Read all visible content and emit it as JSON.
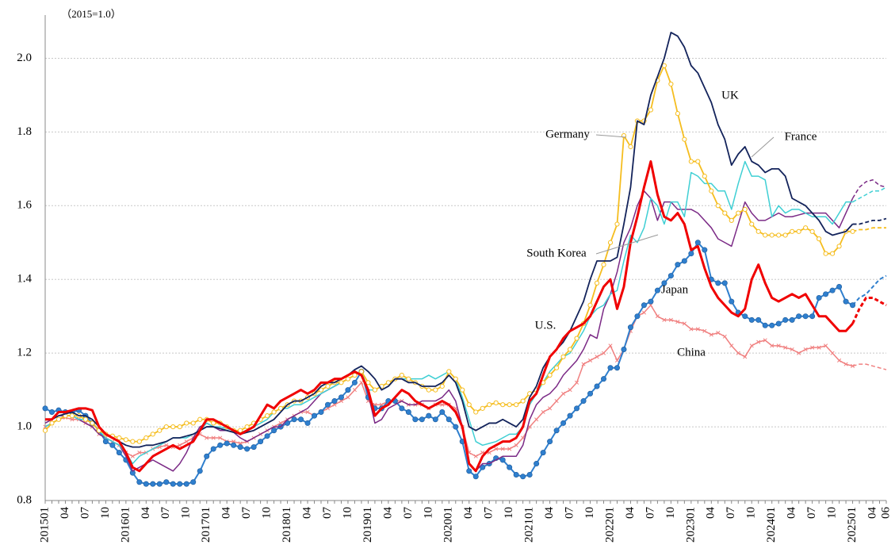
{
  "chart_data": {
    "type": "line",
    "y_unit_label": "（2015=1.0）",
    "ylim": [
      0.8,
      2.1
    ],
    "yticks": [
      0.8,
      {
        "value": 1,
        "label": "1.0"
      },
      1.2,
      1.4,
      1.6,
      1.8,
      {
        "value": 2,
        "label": "2.0"
      }
    ],
    "grid": true,
    "dashed_from_index": 120,
    "categories": [
      "201501",
      null,
      null,
      "04",
      null,
      null,
      "07",
      null,
      null,
      "10",
      null,
      null,
      "201601",
      null,
      null,
      "04",
      null,
      null,
      "07",
      null,
      null,
      "10",
      null,
      null,
      "201701",
      null,
      null,
      "04",
      null,
      null,
      "07",
      null,
      null,
      "10",
      null,
      null,
      "201801",
      null,
      null,
      "04",
      null,
      null,
      "07",
      null,
      null,
      "10",
      null,
      null,
      "201901",
      null,
      null,
      "04",
      null,
      null,
      "07",
      null,
      null,
      "10",
      null,
      null,
      "202001",
      null,
      null,
      "04",
      null,
      null,
      "07",
      null,
      null,
      "10",
      null,
      null,
      "202101",
      null,
      null,
      "04",
      null,
      null,
      "07",
      null,
      null,
      "10",
      null,
      null,
      "202201",
      null,
      null,
      "04",
      null,
      null,
      "07",
      null,
      null,
      "10",
      null,
      null,
      "202301",
      null,
      null,
      "04",
      null,
      null,
      "07",
      null,
      null,
      "10",
      null,
      null,
      "202401",
      null,
      null,
      "04",
      null,
      null,
      "07",
      null,
      null,
      "10",
      null,
      null,
      "202501",
      null,
      null,
      "04",
      null,
      "06"
    ],
    "series": [
      {
        "name": "China",
        "color": "#f08080",
        "width": 1.5,
        "marker": "x",
        "values": [
          1.0,
          1.01,
          1.02,
          1.025,
          1.02,
          1.02,
          1.01,
          1.0,
          0.98,
          0.97,
          0.96,
          0.95,
          0.93,
          0.92,
          0.93,
          0.93,
          0.94,
          0.945,
          0.95,
          0.945,
          0.95,
          0.96,
          0.97,
          0.98,
          0.97,
          0.97,
          0.97,
          0.96,
          0.96,
          0.955,
          0.96,
          0.97,
          0.98,
          0.99,
          1.0,
          1.01,
          1.02,
          1.03,
          1.04,
          1.04,
          1.03,
          1.04,
          1.05,
          1.06,
          1.07,
          1.08,
          1.1,
          1.12,
          1.07,
          1.06,
          1.06,
          1.07,
          1.07,
          1.07,
          1.06,
          1.06,
          1.06,
          1.05,
          1.06,
          1.06,
          1.06,
          1.05,
          1.0,
          0.93,
          0.92,
          0.93,
          0.93,
          0.94,
          0.94,
          0.94,
          0.95,
          0.97,
          1.0,
          1.02,
          1.04,
          1.05,
          1.07,
          1.09,
          1.1,
          1.12,
          1.17,
          1.18,
          1.19,
          1.2,
          1.22,
          1.18,
          1.21,
          1.26,
          1.3,
          1.31,
          1.33,
          1.3,
          1.29,
          1.29,
          1.285,
          1.28,
          1.265,
          1.265,
          1.26,
          1.25,
          1.255,
          1.245,
          1.22,
          1.2,
          1.19,
          1.22,
          1.23,
          1.235,
          1.22,
          1.22,
          1.215,
          1.21,
          1.2,
          1.21,
          1.215,
          1.215,
          1.22,
          1.2,
          1.18,
          1.17,
          1.165,
          1.17,
          1.17,
          1.165,
          1.16,
          1.155
        ]
      },
      {
        "name": "Japan",
        "color": "#2f7fce",
        "width": 2,
        "marker": "filled-circle",
        "values": [
          1.05,
          1.04,
          1.045,
          1.04,
          1.04,
          1.045,
          1.03,
          1.01,
          0.99,
          0.96,
          0.95,
          0.93,
          0.91,
          0.875,
          0.85,
          0.845,
          0.845,
          0.845,
          0.85,
          0.845,
          0.845,
          0.845,
          0.85,
          0.88,
          0.92,
          0.94,
          0.95,
          0.955,
          0.95,
          0.945,
          0.94,
          0.945,
          0.96,
          0.975,
          0.99,
          1.0,
          1.01,
          1.02,
          1.02,
          1.01,
          1.03,
          1.04,
          1.06,
          1.07,
          1.08,
          1.1,
          1.12,
          1.15,
          1.08,
          1.05,
          1.05,
          1.07,
          1.07,
          1.05,
          1.04,
          1.02,
          1.02,
          1.03,
          1.02,
          1.04,
          1.02,
          1.0,
          0.96,
          0.88,
          0.865,
          0.89,
          0.9,
          0.915,
          0.91,
          0.89,
          0.87,
          0.865,
          0.87,
          0.9,
          0.93,
          0.96,
          0.99,
          1.01,
          1.03,
          1.05,
          1.07,
          1.09,
          1.11,
          1.13,
          1.16,
          1.16,
          1.21,
          1.27,
          1.3,
          1.33,
          1.34,
          1.37,
          1.39,
          1.41,
          1.44,
          1.45,
          1.47,
          1.5,
          1.48,
          1.4,
          1.39,
          1.39,
          1.34,
          1.31,
          1.3,
          1.29,
          1.29,
          1.275,
          1.275,
          1.28,
          1.29,
          1.29,
          1.3,
          1.3,
          1.3,
          1.35,
          1.36,
          1.37,
          1.38,
          1.34,
          1.33,
          1.35,
          1.36,
          1.38,
          1.4,
          1.41
        ]
      },
      {
        "name": "South Korea",
        "color": "#7b2a86",
        "width": 1.5,
        "marker": null,
        "values": [
          1.01,
          1.02,
          1.03,
          1.03,
          1.03,
          1.02,
          1.01,
          1.0,
          0.98,
          0.97,
          0.96,
          0.95,
          0.92,
          0.88,
          0.89,
          0.9,
          0.91,
          0.9,
          0.89,
          0.88,
          0.9,
          0.93,
          0.97,
          1.0,
          1.01,
          1.0,
          0.99,
          0.99,
          0.985,
          0.97,
          0.96,
          0.97,
          0.98,
          0.99,
          1.0,
          1.0,
          1.02,
          1.03,
          1.04,
          1.05,
          1.07,
          1.09,
          1.1,
          1.11,
          1.12,
          1.13,
          1.14,
          1.15,
          1.09,
          1.01,
          1.02,
          1.05,
          1.06,
          1.07,
          1.06,
          1.06,
          1.07,
          1.07,
          1.07,
          1.08,
          1.1,
          1.07,
          1.0,
          0.9,
          0.88,
          0.9,
          0.9,
          0.91,
          0.92,
          0.92,
          0.92,
          0.95,
          1.02,
          1.06,
          1.08,
          1.09,
          1.11,
          1.14,
          1.16,
          1.18,
          1.21,
          1.25,
          1.24,
          1.32,
          1.36,
          1.42,
          1.5,
          1.54,
          1.6,
          1.64,
          1.62,
          1.56,
          1.61,
          1.61,
          1.59,
          1.59,
          1.59,
          1.58,
          1.56,
          1.54,
          1.51,
          1.5,
          1.49,
          1.55,
          1.61,
          1.58,
          1.56,
          1.56,
          1.57,
          1.58,
          1.57,
          1.57,
          1.575,
          1.58,
          1.58,
          1.58,
          1.58,
          1.56,
          1.54,
          1.58,
          1.62,
          1.65,
          1.665,
          1.67,
          1.655,
          1.65
        ]
      },
      {
        "name": "France",
        "color": "#3fcfd4",
        "width": 1.5,
        "marker": null,
        "values": [
          1.0,
          1.01,
          1.02,
          1.03,
          1.03,
          1.02,
          1.02,
          1.01,
          0.99,
          0.97,
          0.96,
          0.95,
          0.93,
          0.9,
          0.92,
          0.93,
          0.94,
          0.95,
          0.96,
          0.97,
          0.97,
          0.97,
          0.98,
          0.99,
          1.01,
          1.0,
          1.0,
          0.995,
          0.99,
          0.985,
          0.99,
          1.0,
          1.01,
          1.02,
          1.04,
          1.05,
          1.05,
          1.06,
          1.06,
          1.07,
          1.08,
          1.09,
          1.1,
          1.11,
          1.12,
          1.13,
          1.14,
          1.15,
          1.1,
          1.1,
          1.11,
          1.12,
          1.13,
          1.13,
          1.13,
          1.13,
          1.13,
          1.14,
          1.13,
          1.14,
          1.15,
          1.13,
          1.08,
          1.02,
          0.96,
          0.95,
          0.955,
          0.96,
          0.97,
          0.98,
          0.98,
          1.0,
          1.06,
          1.09,
          1.12,
          1.15,
          1.17,
          1.19,
          1.2,
          1.23,
          1.26,
          1.3,
          1.32,
          1.33,
          1.36,
          1.37,
          1.45,
          1.52,
          1.5,
          1.54,
          1.62,
          1.6,
          1.55,
          1.61,
          1.61,
          1.57,
          1.69,
          1.68,
          1.66,
          1.66,
          1.64,
          1.64,
          1.59,
          1.66,
          1.72,
          1.68,
          1.68,
          1.67,
          1.57,
          1.6,
          1.58,
          1.59,
          1.59,
          1.58,
          1.57,
          1.57,
          1.57,
          1.55,
          1.58,
          1.61,
          1.61,
          1.62,
          1.63,
          1.64,
          1.64,
          1.65
        ]
      },
      {
        "name": "Germany",
        "color": "#f5bd1f",
        "width": 1.8,
        "marker": "open-circle",
        "values": [
          0.99,
          1.01,
          1.02,
          1.03,
          1.03,
          1.03,
          1.02,
          1.01,
          0.99,
          0.98,
          0.975,
          0.97,
          0.965,
          0.96,
          0.96,
          0.97,
          0.98,
          0.99,
          1.0,
          1.0,
          1.0,
          1.01,
          1.01,
          1.02,
          1.02,
          1.01,
          1.01,
          1.0,
          0.99,
          0.99,
          1.0,
          1.01,
          1.02,
          1.03,
          1.04,
          1.05,
          1.06,
          1.07,
          1.07,
          1.08,
          1.09,
          1.1,
          1.11,
          1.12,
          1.12,
          1.13,
          1.14,
          1.15,
          1.12,
          1.1,
          1.11,
          1.12,
          1.13,
          1.14,
          1.13,
          1.12,
          1.11,
          1.1,
          1.1,
          1.11,
          1.15,
          1.13,
          1.1,
          1.06,
          1.04,
          1.05,
          1.06,
          1.065,
          1.06,
          1.06,
          1.06,
          1.07,
          1.09,
          1.1,
          1.12,
          1.14,
          1.16,
          1.19,
          1.21,
          1.24,
          1.28,
          1.33,
          1.39,
          1.44,
          1.5,
          1.55,
          1.79,
          1.76,
          1.83,
          1.83,
          1.86,
          1.94,
          1.98,
          1.93,
          1.85,
          1.78,
          1.72,
          1.72,
          1.68,
          1.64,
          1.6,
          1.58,
          1.56,
          1.58,
          1.59,
          1.55,
          1.53,
          1.52,
          1.52,
          1.52,
          1.52,
          1.53,
          1.53,
          1.54,
          1.53,
          1.51,
          1.47,
          1.47,
          1.49,
          1.53,
          1.53,
          1.535,
          1.535,
          1.54,
          1.54,
          1.54
        ]
      },
      {
        "name": "UK",
        "color": "#13235b",
        "width": 1.8,
        "marker": null,
        "values": [
          1.02,
          1.02,
          1.03,
          1.035,
          1.04,
          1.03,
          1.03,
          1.02,
          1.0,
          0.98,
          0.97,
          0.96,
          0.95,
          0.945,
          0.945,
          0.95,
          0.95,
          0.955,
          0.96,
          0.97,
          0.97,
          0.975,
          0.98,
          0.99,
          1.0,
          1.0,
          0.995,
          0.99,
          0.985,
          0.98,
          0.985,
          0.99,
          1.0,
          1.01,
          1.02,
          1.04,
          1.06,
          1.07,
          1.07,
          1.08,
          1.09,
          1.11,
          1.12,
          1.12,
          1.13,
          1.14,
          1.155,
          1.165,
          1.15,
          1.13,
          1.1,
          1.11,
          1.13,
          1.13,
          1.12,
          1.12,
          1.11,
          1.11,
          1.11,
          1.12,
          1.14,
          1.12,
          1.07,
          1.0,
          0.99,
          1.0,
          1.01,
          1.01,
          1.02,
          1.01,
          1.0,
          1.02,
          1.08,
          1.11,
          1.16,
          1.19,
          1.21,
          1.23,
          1.26,
          1.3,
          1.34,
          1.4,
          1.45,
          1.45,
          1.45,
          1.46,
          1.55,
          1.65,
          1.83,
          1.82,
          1.9,
          1.95,
          2.0,
          2.07,
          2.06,
          2.03,
          1.98,
          1.96,
          1.92,
          1.88,
          1.82,
          1.78,
          1.71,
          1.74,
          1.76,
          1.72,
          1.71,
          1.69,
          1.7,
          1.7,
          1.68,
          1.62,
          1.61,
          1.6,
          1.58,
          1.56,
          1.53,
          1.52,
          1.525,
          1.53,
          1.55,
          1.55,
          1.555,
          1.56,
          1.56,
          1.565
        ]
      },
      {
        "name": "U.S.",
        "color": "#f00000",
        "width": 3,
        "marker": null,
        "values": [
          1.02,
          1.02,
          1.04,
          1.04,
          1.045,
          1.05,
          1.05,
          1.045,
          1.0,
          0.98,
          0.97,
          0.96,
          0.93,
          0.89,
          0.88,
          0.9,
          0.92,
          0.93,
          0.94,
          0.95,
          0.94,
          0.95,
          0.96,
          0.99,
          1.02,
          1.02,
          1.01,
          1.0,
          0.99,
          0.98,
          0.99,
          1.0,
          1.03,
          1.06,
          1.05,
          1.07,
          1.08,
          1.09,
          1.1,
          1.09,
          1.1,
          1.12,
          1.12,
          1.13,
          1.13,
          1.14,
          1.15,
          1.14,
          1.1,
          1.03,
          1.05,
          1.06,
          1.08,
          1.1,
          1.09,
          1.07,
          1.06,
          1.05,
          1.06,
          1.07,
          1.06,
          1.04,
          1.0,
          0.9,
          0.88,
          0.92,
          0.94,
          0.95,
          0.96,
          0.96,
          0.97,
          1.0,
          1.07,
          1.09,
          1.14,
          1.19,
          1.21,
          1.24,
          1.26,
          1.27,
          1.28,
          1.3,
          1.34,
          1.38,
          1.4,
          1.32,
          1.38,
          1.5,
          1.57,
          1.65,
          1.72,
          1.63,
          1.57,
          1.56,
          1.58,
          1.55,
          1.48,
          1.49,
          1.43,
          1.38,
          1.35,
          1.33,
          1.31,
          1.3,
          1.32,
          1.4,
          1.44,
          1.39,
          1.35,
          1.34,
          1.35,
          1.36,
          1.35,
          1.36,
          1.33,
          1.3,
          1.3,
          1.28,
          1.26,
          1.26,
          1.28,
          1.32,
          1.35,
          1.35,
          1.34,
          1.33
        ]
      }
    ]
  }
}
